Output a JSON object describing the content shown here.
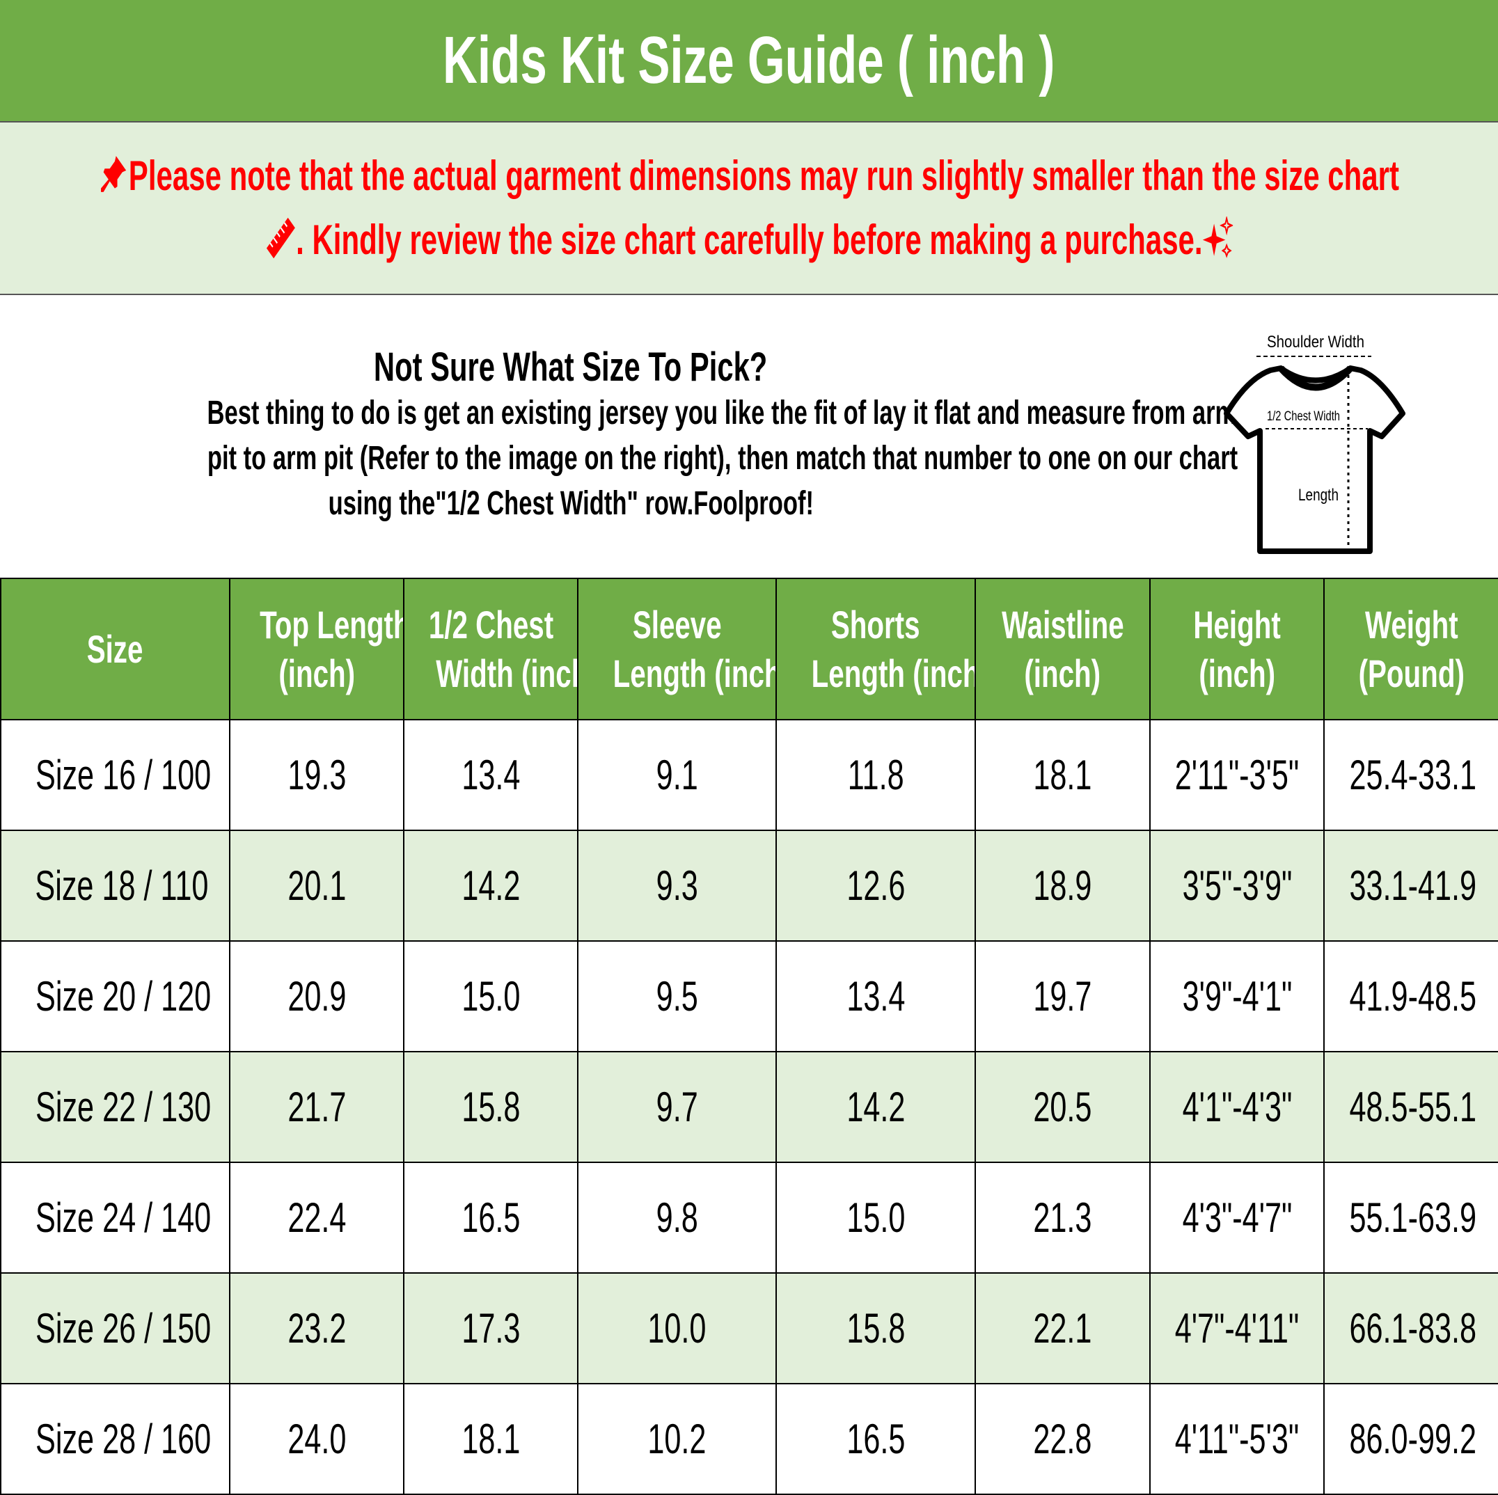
{
  "title": "Kids Kit Size Guide ( inch )",
  "notice": {
    "line1": "Please note that the actual garment dimensions may run slightly smaller than the size chart",
    "line2": ". Kindly review the size chart carefully before making a purchase.",
    "icons": [
      "pushpin-icon",
      "ruler-icon",
      "sparkles-icon"
    ],
    "color": "#ff0000"
  },
  "info": {
    "heading": "Not Sure What Size To Pick?",
    "lines": [
      "Best thing to do is get an existing jersey you like the fit of lay it flat and measure from arm",
      "pit to arm pit (Refer to the image on the right), then match that number to one on our chart",
      "using the\"1/2 Chest Width\" row.Foolproof!"
    ],
    "diagram": {
      "shoulder_label": "Shoulder Width",
      "chest_label": "1/2 Chest Width",
      "length_label": "Length"
    }
  },
  "colors": {
    "header_green": "#70ad47",
    "alt_row": "#e2efda"
  },
  "table": {
    "headers": [
      [
        "Size"
      ],
      [
        "Top Length",
        "(inch)"
      ],
      [
        "1/2 Chest",
        "Width (inch)"
      ],
      [
        "Sleeve",
        "Length (inch)"
      ],
      [
        "Shorts",
        "Length (inch)"
      ],
      [
        "Waistline",
        "(inch)"
      ],
      [
        "Height",
        "(inch)"
      ],
      [
        "Weight",
        "(Pound)"
      ]
    ],
    "rows": [
      [
        "Size 16 / 100",
        "19.3",
        "13.4",
        "9.1",
        "11.8",
        "18.1",
        "2'11\"-3'5\"",
        "25.4-33.1"
      ],
      [
        "Size 18 / 110",
        "20.1",
        "14.2",
        "9.3",
        "12.6",
        "18.9",
        "3'5\"-3'9\"",
        "33.1-41.9"
      ],
      [
        "Size 20 / 120",
        "20.9",
        "15.0",
        "9.5",
        "13.4",
        "19.7",
        "3'9\"-4'1\"",
        "41.9-48.5"
      ],
      [
        "Size 22 / 130",
        "21.7",
        "15.8",
        "9.7",
        "14.2",
        "20.5",
        "4'1\"-4'3\"",
        "48.5-55.1"
      ],
      [
        "Size 24 / 140",
        "22.4",
        "16.5",
        "9.8",
        "15.0",
        "21.3",
        "4'3\"-4'7\"",
        "55.1-63.9"
      ],
      [
        "Size 26 / 150",
        "23.2",
        "17.3",
        "10.0",
        "15.8",
        "22.1",
        "4'7\"-4'11\"",
        "66.1-83.8"
      ],
      [
        "Size 28 / 160",
        "24.0",
        "18.1",
        "10.2",
        "16.5",
        "22.8",
        "4'11\"-5'3\"",
        "86.0-99.2"
      ]
    ]
  }
}
